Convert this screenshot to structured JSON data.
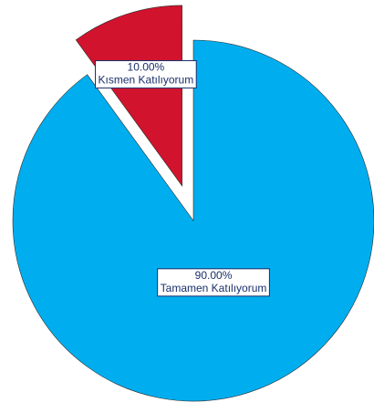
{
  "chart_data": {
    "type": "pie",
    "categories": [
      "Tamamen Katılıyorum",
      "Kısmen Katılıyorum"
    ],
    "values": [
      90,
      10
    ],
    "value_labels": [
      "90.00%",
      "10.00%"
    ],
    "colors": [
      "#00aeef",
      "#d2132d"
    ],
    "explode": [
      false,
      true
    ]
  }
}
